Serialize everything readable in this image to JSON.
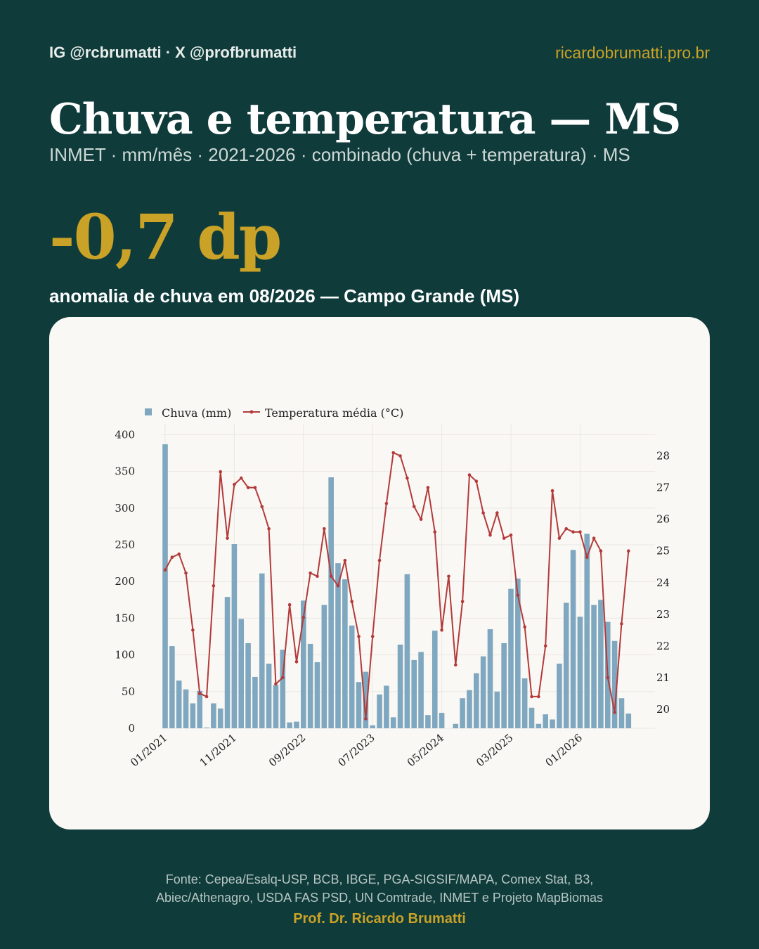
{
  "header": {
    "handles": "IG @rcbrumatti · X @profbrumatti",
    "site": "ricardobrumatti.pro.br"
  },
  "title": "Chuva e temperatura — MS",
  "subtitle": "INMET · mm/mês · 2021-2026 · combinado (chuva + temperatura) · MS",
  "kpi": {
    "value": "-0,7 dp",
    "label": "anomalia de chuva em 08/2026 — Campo Grande (MS)"
  },
  "colors": {
    "background": "#0f3b3b",
    "accent": "#c9a227",
    "bar": "#7fa8c0",
    "line": "#b23a3a"
  },
  "chart_data": {
    "type": "bar",
    "legend": [
      "Chuva (mm)",
      "Temperatura média (°C)"
    ],
    "legend_position": "top-left",
    "grid": true,
    "x_tick_labels": [
      "01/2021",
      "11/2021",
      "09/2022",
      "07/2023",
      "05/2024",
      "03/2025",
      "01/2026"
    ],
    "x_tick_positions": [
      0,
      10,
      20,
      30,
      40,
      50,
      60
    ],
    "y_left": {
      "ylim": [
        0,
        410
      ],
      "ticks": [
        0,
        50,
        100,
        150,
        200,
        250,
        300,
        350,
        400
      ]
    },
    "y_right": {
      "ylim": [
        19.4,
        28.9
      ],
      "ticks": [
        20,
        21,
        22,
        23,
        24,
        25,
        26,
        27,
        28
      ]
    },
    "series": [
      {
        "name": "Chuva (mm)",
        "type": "bar",
        "axis": "left",
        "values": [
          387,
          112,
          65,
          53,
          34,
          51,
          1,
          34,
          27,
          179,
          251,
          149,
          116,
          70,
          211,
          88,
          59,
          107,
          8,
          9,
          174,
          115,
          90,
          168,
          342,
          225,
          203,
          140,
          63,
          77,
          4,
          46,
          58,
          15,
          114,
          210,
          93,
          104,
          18,
          133,
          21,
          null,
          6,
          41,
          52,
          75,
          98,
          135,
          50,
          116,
          190,
          204,
          68,
          28,
          6,
          19,
          12,
          88,
          171,
          243,
          152,
          265,
          168,
          175,
          145,
          119,
          41,
          20
        ]
      },
      {
        "name": "Temperatura média (°C)",
        "type": "line",
        "axis": "right",
        "values": [
          24.4,
          24.8,
          24.9,
          24.3,
          22.5,
          20.5,
          20.4,
          23.9,
          27.5,
          25.4,
          27.1,
          27.3,
          27.0,
          27.0,
          26.4,
          25.7,
          20.8,
          21.0,
          23.3,
          21.5,
          22.9,
          24.3,
          24.2,
          25.7,
          24.2,
          23.9,
          24.7,
          23.4,
          22.3,
          19.7,
          22.3,
          24.7,
          26.5,
          28.1,
          28.0,
          27.3,
          26.4,
          26.0,
          27.0,
          25.6,
          22.5,
          24.2,
          21.4,
          23.4,
          27.4,
          27.2,
          26.2,
          25.5,
          26.2,
          25.4,
          25.5,
          23.6,
          22.6,
          20.4,
          20.4,
          22.0,
          26.9,
          25.4,
          25.7,
          25.6,
          25.6,
          24.8,
          25.4,
          25.0,
          21.0,
          19.9,
          22.7,
          25.0
        ]
      }
    ]
  },
  "footer": {
    "sources_line1": "Fonte: Cepea/Esalq-USP, BCB, IBGE, PGA-SIGSIF/MAPA, Comex Stat, B3,",
    "sources_line2": "Abiec/Athenagro, USDA FAS PSD, UN Comtrade, INMET e Projeto MapBiomas",
    "author": "Prof. Dr. Ricardo Brumatti"
  }
}
